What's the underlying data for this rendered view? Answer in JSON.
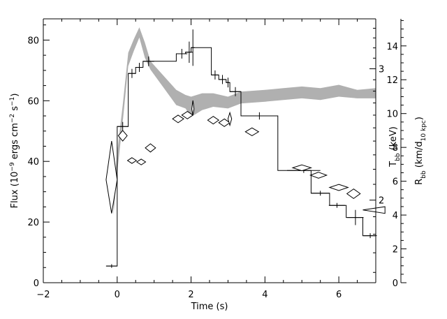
{
  "chart_data": {
    "type": "line",
    "title": "",
    "xlabel": "Time (s)",
    "xlim": [
      -2,
      7
    ],
    "x_ticks": [
      -2,
      0,
      2,
      4,
      6
    ],
    "grid": false,
    "legend": "none",
    "axes": {
      "flux": {
        "side": "left",
        "label_parts": [
          "Flux (10",
          "−9",
          " ergs cm",
          "−2",
          " s",
          "−1",
          ")"
        ],
        "ylim": [
          0,
          87
        ],
        "ticks": [
          0,
          20,
          40,
          60,
          80
        ]
      },
      "temperature": {
        "side": "right-inner",
        "scale": "log",
        "label_parts": [
          "T",
          "bb",
          " (keV)"
        ],
        "ylim": [
          1.55,
          3.5
        ],
        "ticks": [
          2,
          3
        ]
      },
      "radius": {
        "side": "right-outer",
        "label_parts": [
          "R",
          "bb",
          " (km/d",
          "10 kpc",
          ")"
        ],
        "ylim": [
          0,
          15.6
        ],
        "ticks": [
          0,
          2,
          4,
          6,
          8,
          10,
          12,
          14
        ]
      }
    },
    "series": [
      {
        "kind": "step-flux",
        "axis": "flux",
        "color": "#000000",
        "x": [
          -0.3,
          0.0,
          0.0,
          0.3,
          0.3,
          0.5,
          0.5,
          0.7,
          0.7,
          1.6,
          1.6,
          1.85,
          1.85,
          2.0,
          2.0,
          2.55,
          2.55,
          2.75,
          2.75,
          2.95,
          2.95,
          3.05,
          3.05,
          3.35,
          3.35,
          4.35,
          4.35,
          5.25,
          5.25,
          5.75,
          5.75,
          6.2,
          6.2,
          6.65,
          6.65,
          7.0
        ],
        "y": [
          5.5,
          5.5,
          51.5,
          51.5,
          69,
          69,
          71,
          71,
          73,
          73,
          75.5,
          75.5,
          76,
          76,
          77.5,
          77.5,
          68.5,
          68.5,
          67,
          67,
          66,
          66,
          63,
          63,
          55,
          55,
          37,
          37,
          29.5,
          29.5,
          25.5,
          25.5,
          21.5,
          21.5,
          15.5,
          15.5
        ]
      },
      {
        "kind": "error-crosses",
        "axis": "flux",
        "color": "#000000",
        "points": [
          {
            "x": -0.15,
            "y": 5.5,
            "xerr": 0.15,
            "yerr": 0.6
          },
          {
            "x": 0.15,
            "y": 51.5,
            "xerr": 0.15,
            "yerr": 1.5
          },
          {
            "x": 0.4,
            "y": 69,
            "xerr": 0.1,
            "yerr": 1.5
          },
          {
            "x": 0.6,
            "y": 71,
            "xerr": 0.1,
            "yerr": 1.5
          },
          {
            "x": 0.85,
            "y": 73,
            "xerr": 0.15,
            "yerr": 1.6
          },
          {
            "x": 1.75,
            "y": 75.5,
            "xerr": 0.15,
            "yerr": 1.6
          },
          {
            "x": 1.95,
            "y": 76,
            "xerr": 0.1,
            "yerr": 3.5
          },
          {
            "x": 2.05,
            "y": 77.5,
            "xerr": 0.05,
            "yerr": 6
          },
          {
            "x": 2.65,
            "y": 68.5,
            "xerr": 0.1,
            "yerr": 1.5
          },
          {
            "x": 2.85,
            "y": 67,
            "xerr": 0.1,
            "yerr": 1.5
          },
          {
            "x": 3.0,
            "y": 66,
            "xerr": 0.05,
            "yerr": 1.6
          },
          {
            "x": 3.2,
            "y": 63,
            "xerr": 0.15,
            "yerr": 1.5
          },
          {
            "x": 3.85,
            "y": 55,
            "xerr": 0.5,
            "yerr": 1.2
          },
          {
            "x": 5.05,
            "y": 37,
            "xerr": 0.45,
            "yerr": 0.8
          },
          {
            "x": 5.5,
            "y": 29.5,
            "xerr": 0.25,
            "yerr": 0.8
          },
          {
            "x": 5.95,
            "y": 25.5,
            "xerr": 0.22,
            "yerr": 0.8
          },
          {
            "x": 6.45,
            "y": 21.5,
            "xerr": 0.22,
            "yerr": 2.5
          },
          {
            "x": 6.85,
            "y": 15.5,
            "xerr": 0.18,
            "yerr": 0.8
          }
        ]
      },
      {
        "kind": "band",
        "axis": "radius",
        "color": "#b0b0b0",
        "x": [
          -0.1,
          0.0,
          0.15,
          0.3,
          0.45,
          0.6,
          0.75,
          0.9,
          1.6,
          1.85,
          2.0,
          2.3,
          2.6,
          3.0,
          3.35,
          4.0,
          4.5,
          5.0,
          5.5,
          6.0,
          6.5,
          7.0
        ],
        "low": [
          4.0,
          6.5,
          9.5,
          12.8,
          13.7,
          14.5,
          13.3,
          12.6,
          10.5,
          10.3,
          9.8,
          10.2,
          10.4,
          10.3,
          10.6,
          10.7,
          10.8,
          10.9,
          10.8,
          11.0,
          10.9,
          10.9
        ],
        "high": [
          5.0,
          7.7,
          10.5,
          13.6,
          14.4,
          15.1,
          14.2,
          13.1,
          11.4,
          11.1,
          11.0,
          11.2,
          11.2,
          11.0,
          11.3,
          11.4,
          11.5,
          11.6,
          11.5,
          11.7,
          11.4,
          11.5
        ]
      },
      {
        "kind": "diamonds",
        "axis": "temperature",
        "color": "#000000",
        "points": [
          {
            "x": -0.15,
            "y": 2.13,
            "xerr": 0.15,
            "ylo": 1.92,
            "yhi": 2.4
          },
          {
            "x": 0.15,
            "y": 2.44,
            "xerr": 0.12,
            "ylo": 2.4,
            "yhi": 2.48
          },
          {
            "x": 0.4,
            "y": 2.26,
            "xerr": 0.12,
            "ylo": 2.24,
            "yhi": 2.28
          },
          {
            "x": 0.65,
            "y": 2.25,
            "xerr": 0.12,
            "ylo": 2.23,
            "yhi": 2.27
          },
          {
            "x": 0.9,
            "y": 2.35,
            "xerr": 0.14,
            "ylo": 2.32,
            "yhi": 2.38
          },
          {
            "x": 1.65,
            "y": 2.57,
            "xerr": 0.15,
            "ylo": 2.54,
            "yhi": 2.6
          },
          {
            "x": 1.9,
            "y": 2.6,
            "xerr": 0.15,
            "ylo": 2.57,
            "yhi": 2.63
          },
          {
            "x": 2.05,
            "y": 2.65,
            "xerr": 0.03,
            "ylo": 2.6,
            "yhi": 2.72
          },
          {
            "x": 2.6,
            "y": 2.56,
            "xerr": 0.15,
            "ylo": 2.53,
            "yhi": 2.59
          },
          {
            "x": 2.9,
            "y": 2.54,
            "xerr": 0.15,
            "ylo": 2.51,
            "yhi": 2.57
          },
          {
            "x": 3.05,
            "y": 2.57,
            "xerr": 0.05,
            "ylo": 2.52,
            "yhi": 2.62
          },
          {
            "x": 3.65,
            "y": 2.47,
            "xerr": 0.18,
            "ylo": 2.44,
            "yhi": 2.5
          },
          {
            "x": 5.0,
            "y": 2.21,
            "xerr": 0.25,
            "ylo": 2.19,
            "yhi": 2.23
          },
          {
            "x": 5.45,
            "y": 2.16,
            "xerr": 0.22,
            "ylo": 2.14,
            "yhi": 2.18
          },
          {
            "x": 6.0,
            "y": 2.08,
            "xerr": 0.25,
            "ylo": 2.06,
            "yhi": 2.1
          },
          {
            "x": 6.4,
            "y": 2.04,
            "xerr": 0.18,
            "ylo": 2.01,
            "yhi": 2.07
          },
          {
            "x": 6.95,
            "y": 1.94,
            "xerr": 0.3,
            "ylo": 1.92,
            "yhi": 1.96,
            "shape": "half"
          }
        ]
      }
    ]
  }
}
